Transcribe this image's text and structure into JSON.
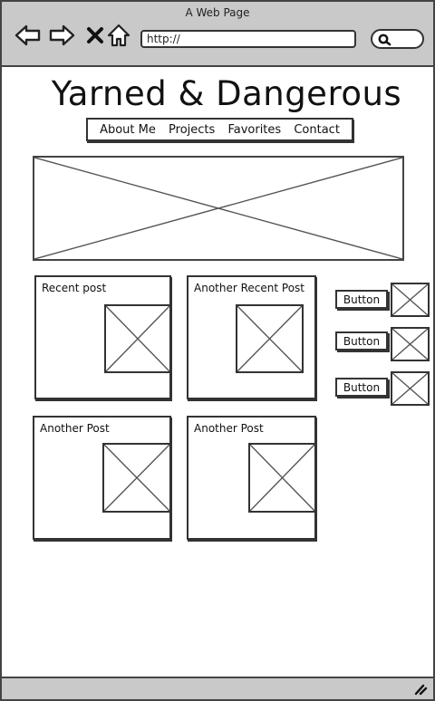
{
  "window": {
    "title": "A Web Page"
  },
  "browser": {
    "url": "http://",
    "icons": [
      "back-arrow-icon",
      "forward-arrow-icon",
      "close-x-icon",
      "home-icon",
      "search-icon"
    ]
  },
  "site": {
    "title": "Yarned & Dangerous",
    "nav": [
      "About Me",
      "Projects",
      "Favorites",
      "Contact"
    ]
  },
  "posts": [
    {
      "title": "Recent post"
    },
    {
      "title": "Another Recent Post"
    },
    {
      "title": "Another Post"
    },
    {
      "title": "Another Post"
    }
  ],
  "side_buttons": [
    {
      "label": "Button"
    },
    {
      "label": "Button"
    },
    {
      "label": "Button"
    }
  ],
  "colors": {
    "chrome": "#c9c9c9",
    "stroke": "#333333",
    "placeholder_line": "#555555"
  }
}
